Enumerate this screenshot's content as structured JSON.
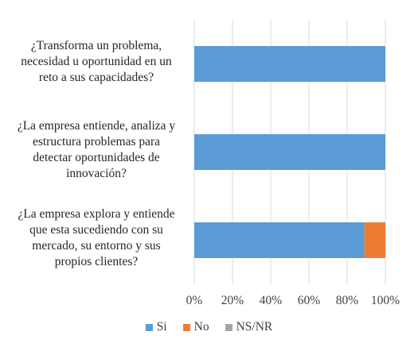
{
  "chart_data": {
    "type": "bar",
    "orientation": "horizontal",
    "stacked": true,
    "percent": true,
    "categories": [
      "¿Transforma un problema, necesidad u oportunidad en un reto a sus capacidades?",
      "¿La empresa entiende, analiza y estructura problemas para detectar oportunidades de innovación?",
      "¿La empresa explora y entiende que esta sucediendo con su mercado, su entorno y sus propios clientes?"
    ],
    "category_lines": [
      [
        "¿Transforma un problema,",
        "necesidad u oportunidad en un",
        "reto a sus capacidades?"
      ],
      [
        "¿La empresa entiende, analiza y",
        "estructura problemas para",
        "detectar oportunidades de",
        "innovación?"
      ],
      [
        "¿La empresa explora y entiende",
        "que esta sucediendo con su",
        "mercado, su entorno y sus",
        "propios clientes?"
      ]
    ],
    "series": [
      {
        "name": "Si",
        "values": [
          100,
          100,
          89
        ],
        "color": "#5b9bd5"
      },
      {
        "name": "No",
        "values": [
          0,
          0,
          11
        ],
        "color": "#ed7d31"
      },
      {
        "name": "NS/NR",
        "values": [
          0,
          0,
          0
        ],
        "color": "#a5a5a5"
      }
    ],
    "xlim": [
      0,
      100
    ],
    "x_ticks": [
      "0%",
      "20%",
      "40%",
      "60%",
      "80%",
      "100%"
    ],
    "gridlines": true,
    "legend_position": "bottom"
  }
}
